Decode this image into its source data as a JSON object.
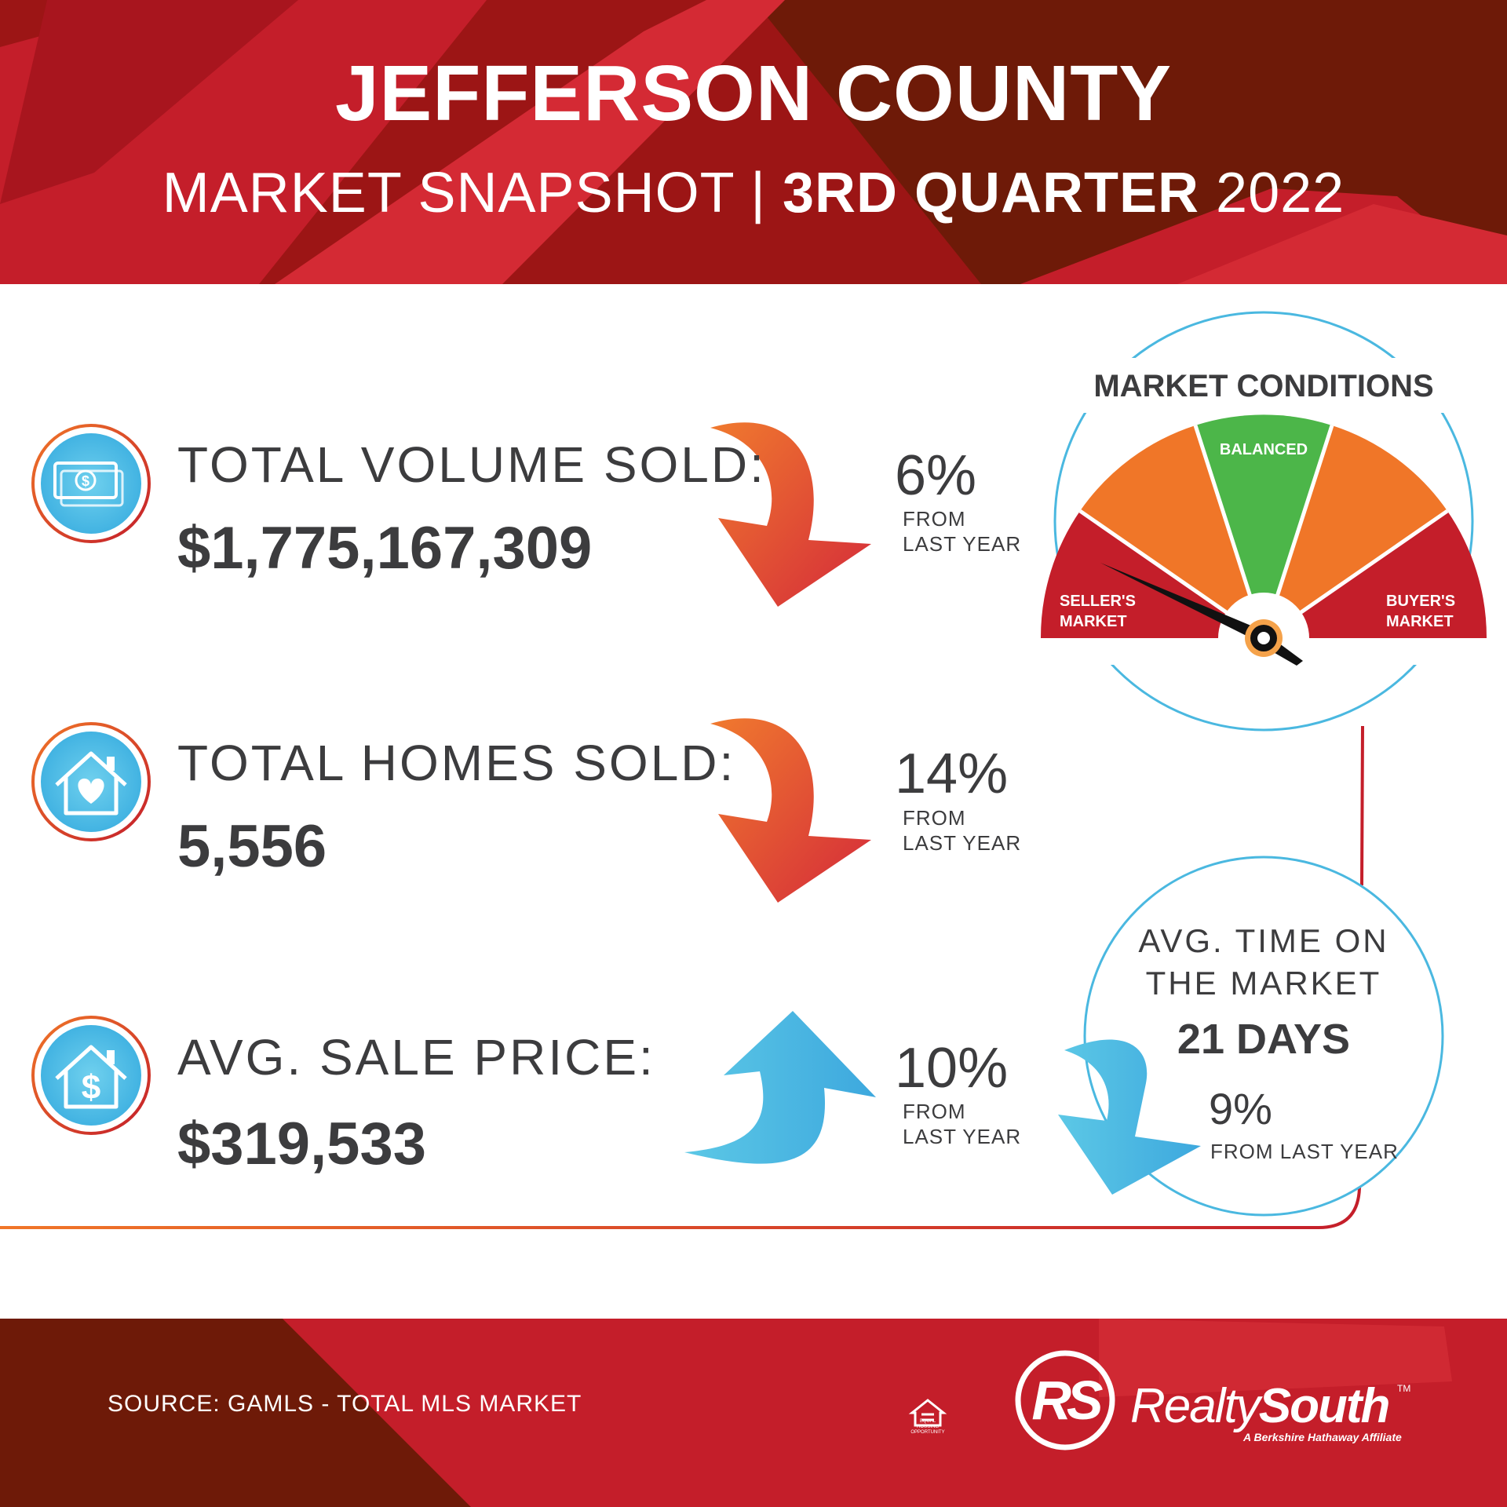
{
  "header": {
    "title": "JEFFERSON COUNTY",
    "subtitle_light": "MARKET SNAPSHOT | ",
    "subtitle_bold": "3RD QUARTER",
    "subtitle_year": " 2022"
  },
  "stats": [
    {
      "label": "TOTAL VOLUME SOLD:",
      "value": "$1,775,167,309",
      "change": "6%",
      "change_note": "FROM\nLAST YEAR",
      "direction": "down",
      "icon": "money-icon"
    },
    {
      "label": "TOTAL HOMES SOLD:",
      "value": "5,556",
      "change": "14%",
      "change_note": "FROM\nLAST YEAR",
      "direction": "down",
      "icon": "house-heart-icon"
    },
    {
      "label": "AVG. SALE PRICE:",
      "value": "$319,533",
      "change": "10%",
      "change_note": "FROM\nLAST YEAR",
      "direction": "up",
      "icon": "house-dollar-icon"
    }
  ],
  "gauge": {
    "title": "MARKET CONDITIONS",
    "left_label": "SELLER'S\nMARKET",
    "center_label": "BALANCED",
    "right_label": "BUYER'S\nMARKET",
    "reading": "seller's market"
  },
  "days_on_market": {
    "title": "AVG. TIME ON\nTHE MARKET",
    "value": "21 DAYS",
    "change": "9%",
    "change_note": "FROM LAST YEAR",
    "direction": "down"
  },
  "footer": {
    "source": "SOURCE: GAMLS - TOTAL MLS MARKET",
    "brand_light": "Realty",
    "brand_bold": "South",
    "trademark": "TM",
    "tagline": "A Berkshire Hathaway Affiliate",
    "logo_monogram": "RS",
    "equal_housing": "EQUAL HOUSING\nOPPORTUNITY"
  },
  "colors": {
    "brand_red": "#c41e2a",
    "dark_red": "#6e1a08",
    "orange": "#f07628",
    "green": "#4cb649",
    "blue": "#4ab8e0",
    "text": "#3c3c3e"
  }
}
